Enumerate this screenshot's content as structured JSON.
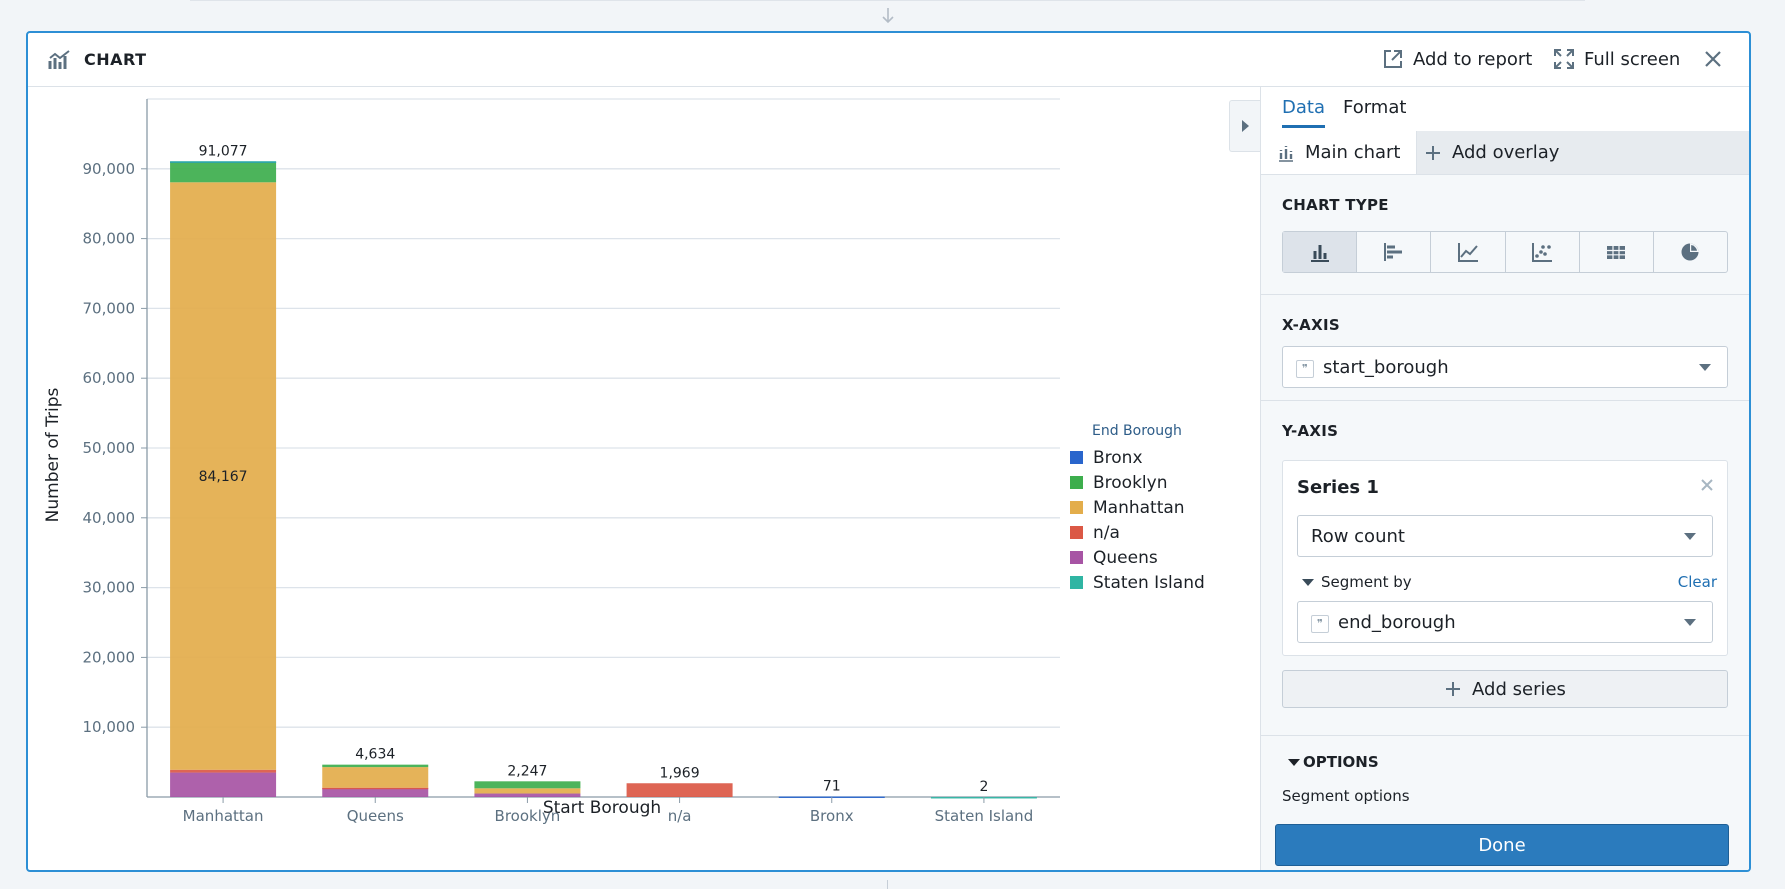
{
  "header": {
    "title": "CHART",
    "add_to_report": "Add to report",
    "full_screen": "Full screen"
  },
  "chart_data": {
    "type": "bar",
    "stacked": true,
    "xlabel": "Start Borough",
    "ylabel": "Number of Trips",
    "ylim": [
      0,
      100000
    ],
    "yticks": [
      10000,
      20000,
      30000,
      40000,
      50000,
      60000,
      70000,
      80000,
      90000
    ],
    "ytick_labels": [
      "10,000",
      "20,000",
      "30,000",
      "40,000",
      "50,000",
      "60,000",
      "70,000",
      "80,000",
      "90,000"
    ],
    "categories": [
      "Manhattan",
      "Queens",
      "Brooklyn",
      "n/a",
      "Bronx",
      "Staten Island"
    ],
    "totals": [
      91077,
      4634,
      2247,
      1969,
      71,
      2
    ],
    "total_labels": [
      "91,077",
      "4,634",
      "2,247",
      "1,969",
      "71",
      "2"
    ],
    "inner_labels": [
      {
        "category": "Manhattan",
        "series": "Manhattan",
        "text": "84,167"
      }
    ],
    "legend_title": "End Borough",
    "legend_position": "right",
    "grid": true,
    "series": [
      {
        "name": "Bronx",
        "color": "#2965cc",
        "values": [
          100,
          0,
          0,
          0,
          71,
          0
        ]
      },
      {
        "name": "Brooklyn",
        "color": "#3dae4d",
        "values": [
          2900,
          350,
          1000,
          0,
          0,
          0
        ]
      },
      {
        "name": "Manhattan",
        "color": "#e3ad4b",
        "values": [
          84167,
          2950,
          750,
          0,
          0,
          0
        ]
      },
      {
        "name": "n/a",
        "color": "#db5845",
        "values": [
          400,
          50,
          0,
          1969,
          0,
          0
        ]
      },
      {
        "name": "Queens",
        "color": "#a754a4",
        "values": [
          3500,
          1284,
          497,
          0,
          0,
          0
        ]
      },
      {
        "name": "Staten Island",
        "color": "#2fb5a3",
        "values": [
          10,
          0,
          0,
          0,
          0,
          2
        ]
      }
    ]
  },
  "panel": {
    "tabs": [
      "Data",
      "Format"
    ],
    "subtabs": {
      "main": "Main chart",
      "overlay": "Add overlay"
    },
    "chart_type_label": "CHART TYPE",
    "chart_types": [
      "vertical-bar",
      "horizontal-bar",
      "line",
      "scatter",
      "table",
      "pie"
    ],
    "x_axis_label": "X-AXIS",
    "x_axis_value": "start_borough",
    "y_axis_label": "Y-AXIS",
    "series_title": "Series 1",
    "aggregation": "Row count",
    "segment_by_label": "Segment by",
    "clear": "Clear",
    "segment_value": "end_borough",
    "add_series": "Add series",
    "options_label": "OPTIONS",
    "segment_options": "Segment options",
    "done": "Done"
  }
}
